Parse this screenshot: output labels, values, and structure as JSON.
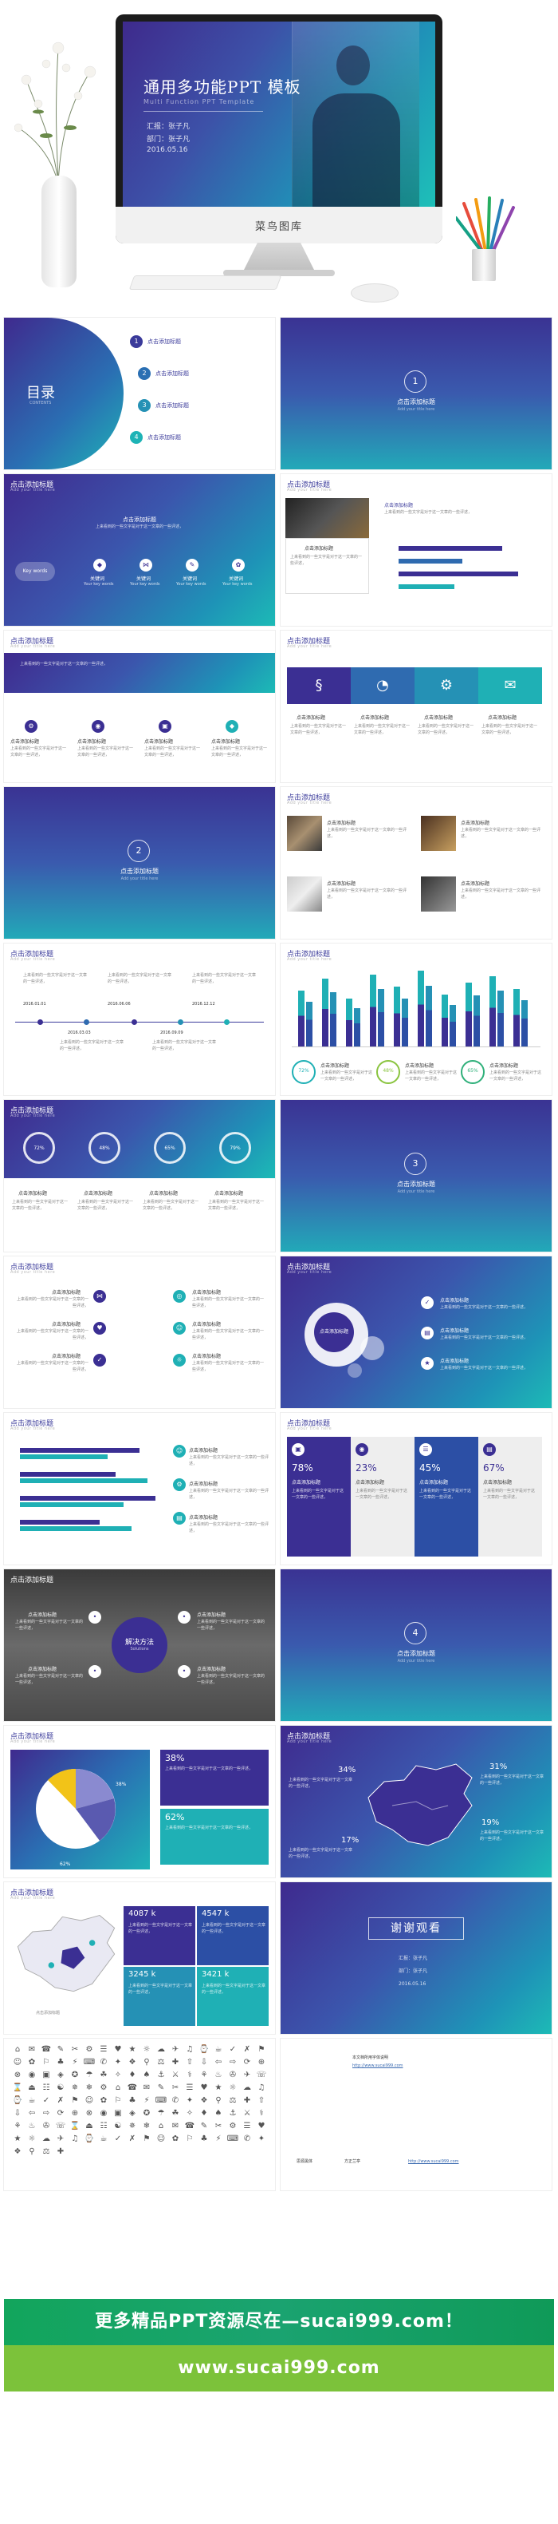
{
  "hero": {
    "title": "通用多功能PPT 模板",
    "subtitle": "Multi Function PPT Template",
    "meta_lines": [
      "汇报：张子凡",
      "部门：张子凡",
      "2016.05.16"
    ],
    "brand": "菜鸟图库"
  },
  "common": {
    "slide_title": "点击添加标题",
    "slide_title_en": "Add your title here",
    "body_text": "上来看到的一些文字是对于这一文章的一些评述，"
  },
  "toc": {
    "title": "目录",
    "subtitle": "CONTENTS",
    "items": [
      {
        "num": "1",
        "label": "点击添加标题"
      },
      {
        "num": "2",
        "label": "点击添加标题"
      },
      {
        "num": "3",
        "label": "点击添加标题"
      },
      {
        "num": "4",
        "label": "点击添加标题"
      }
    ]
  },
  "sections": {
    "s1": {
      "num": "1",
      "label": "点击添加标题"
    },
    "s2": {
      "num": "2",
      "label": "点击添加标题"
    },
    "s3": {
      "num": "3",
      "label": "点击添加标题"
    },
    "s4": {
      "num": "4",
      "label": "点击添加标题"
    }
  },
  "keywords": {
    "banner": "点击添加标题",
    "main": "Key words",
    "items": [
      {
        "label": "关键词",
        "sub": "Your key words"
      },
      {
        "label": "关键词",
        "sub": "Your key words"
      },
      {
        "label": "关键词",
        "sub": "Your key words"
      },
      {
        "label": "关键词",
        "sub": "Your key words"
      }
    ]
  },
  "timeline": {
    "dates": [
      "2016.01.01",
      "2016.06.06",
      "2016.12.12",
      "2016.03.03",
      "2016.09.09"
    ]
  },
  "percent_rings": [
    "72%",
    "48%",
    "65%",
    "79%"
  ],
  "progress_rings": [
    "72%",
    "48%",
    "65%"
  ],
  "stats": [
    {
      "value": "78%",
      "label": "点击添加标题"
    },
    {
      "value": "23%",
      "label": "点击添加标题"
    },
    {
      "value": "45%",
      "label": "点击添加标题"
    },
    {
      "value": "67%",
      "label": "点击添加标题"
    }
  ],
  "solution": {
    "label": "解决方法",
    "sub": "Solutions"
  },
  "bubble": {
    "label": "点击添加标题"
  },
  "pie": {
    "big": "38%",
    "small": "62%",
    "stats": [
      "38%",
      "62%"
    ]
  },
  "map_stats": [
    "34%",
    "31%",
    "17%",
    "19%"
  ],
  "china_stats": [
    "4087 k",
    "4547 k",
    "3245 k",
    "3421 k"
  ],
  "china_label": "点击添加标题",
  "thanks": {
    "title": "谢谢观看",
    "meta_lines": [
      "汇报：张子凡",
      "部门：张子凡",
      "2016.05.16"
    ]
  },
  "credits": {
    "line1": "本文档所用字体说明",
    "line2": "思源黑体",
    "line3": "方正兰亭",
    "link": "http://www.sucai999.com"
  },
  "cta": {
    "line1": "更多精品PPT资源尽在—sucai999.com！",
    "line2": "www.sucai999.com"
  },
  "icons": [
    "⌂",
    "✉",
    "☎",
    "✎",
    "✂",
    "⚙",
    "☰",
    "♥",
    "★",
    "☼",
    "☁",
    "✈",
    "♫",
    "⌚",
    "☕",
    "✓",
    "✗",
    "⚑",
    "☺",
    "✿",
    "⚐",
    "♣",
    "⚡",
    "⌨",
    "✆",
    "✦",
    "❖",
    "⚲",
    "⚖",
    "✚",
    "⇧",
    "⇩",
    "⇦",
    "⇨",
    "⟳",
    "⊕",
    "⊗",
    "◉",
    "▣",
    "◈",
    "✪",
    "☂",
    "☘",
    "✧",
    "♦",
    "♠",
    "⚓",
    "⚔",
    "⚕",
    "⚘",
    "♨",
    "✇",
    "✈",
    "☏",
    "⌛",
    "⏏",
    "☷",
    "☯",
    "✵",
    "❄",
    "⚙",
    "⌂",
    "☎",
    "✉",
    "✎",
    "✂",
    "☰",
    "♥",
    "★",
    "☼",
    "☁",
    "♫",
    "⌚",
    "☕",
    "✓",
    "✗",
    "⚑",
    "☺",
    "✿",
    "⚐",
    "♣",
    "⚡",
    "⌨",
    "✆",
    "✦",
    "❖",
    "⚲",
    "⚖",
    "✚",
    "⇧",
    "⇩",
    "⇦",
    "⇨",
    "⟳",
    "⊕",
    "⊗",
    "◉",
    "▣",
    "◈",
    "✪",
    "☂",
    "☘",
    "✧",
    "♦",
    "♠",
    "⚓",
    "⚔",
    "⚕",
    "⚘",
    "♨",
    "✇",
    "☏",
    "⌛",
    "⏏",
    "☷",
    "☯",
    "✵",
    "❄",
    "⌂",
    "✉",
    "☎",
    "✎",
    "✂",
    "⚙",
    "☰",
    "♥",
    "★",
    "☼",
    "☁",
    "✈",
    "♫",
    "⌚",
    "☕",
    "✓",
    "✗",
    "⚑",
    "☺",
    "✿",
    "⚐",
    "♣",
    "⚡",
    "⌨",
    "✆",
    "✦",
    "❖",
    "⚲",
    "⚖",
    "✚"
  ]
}
